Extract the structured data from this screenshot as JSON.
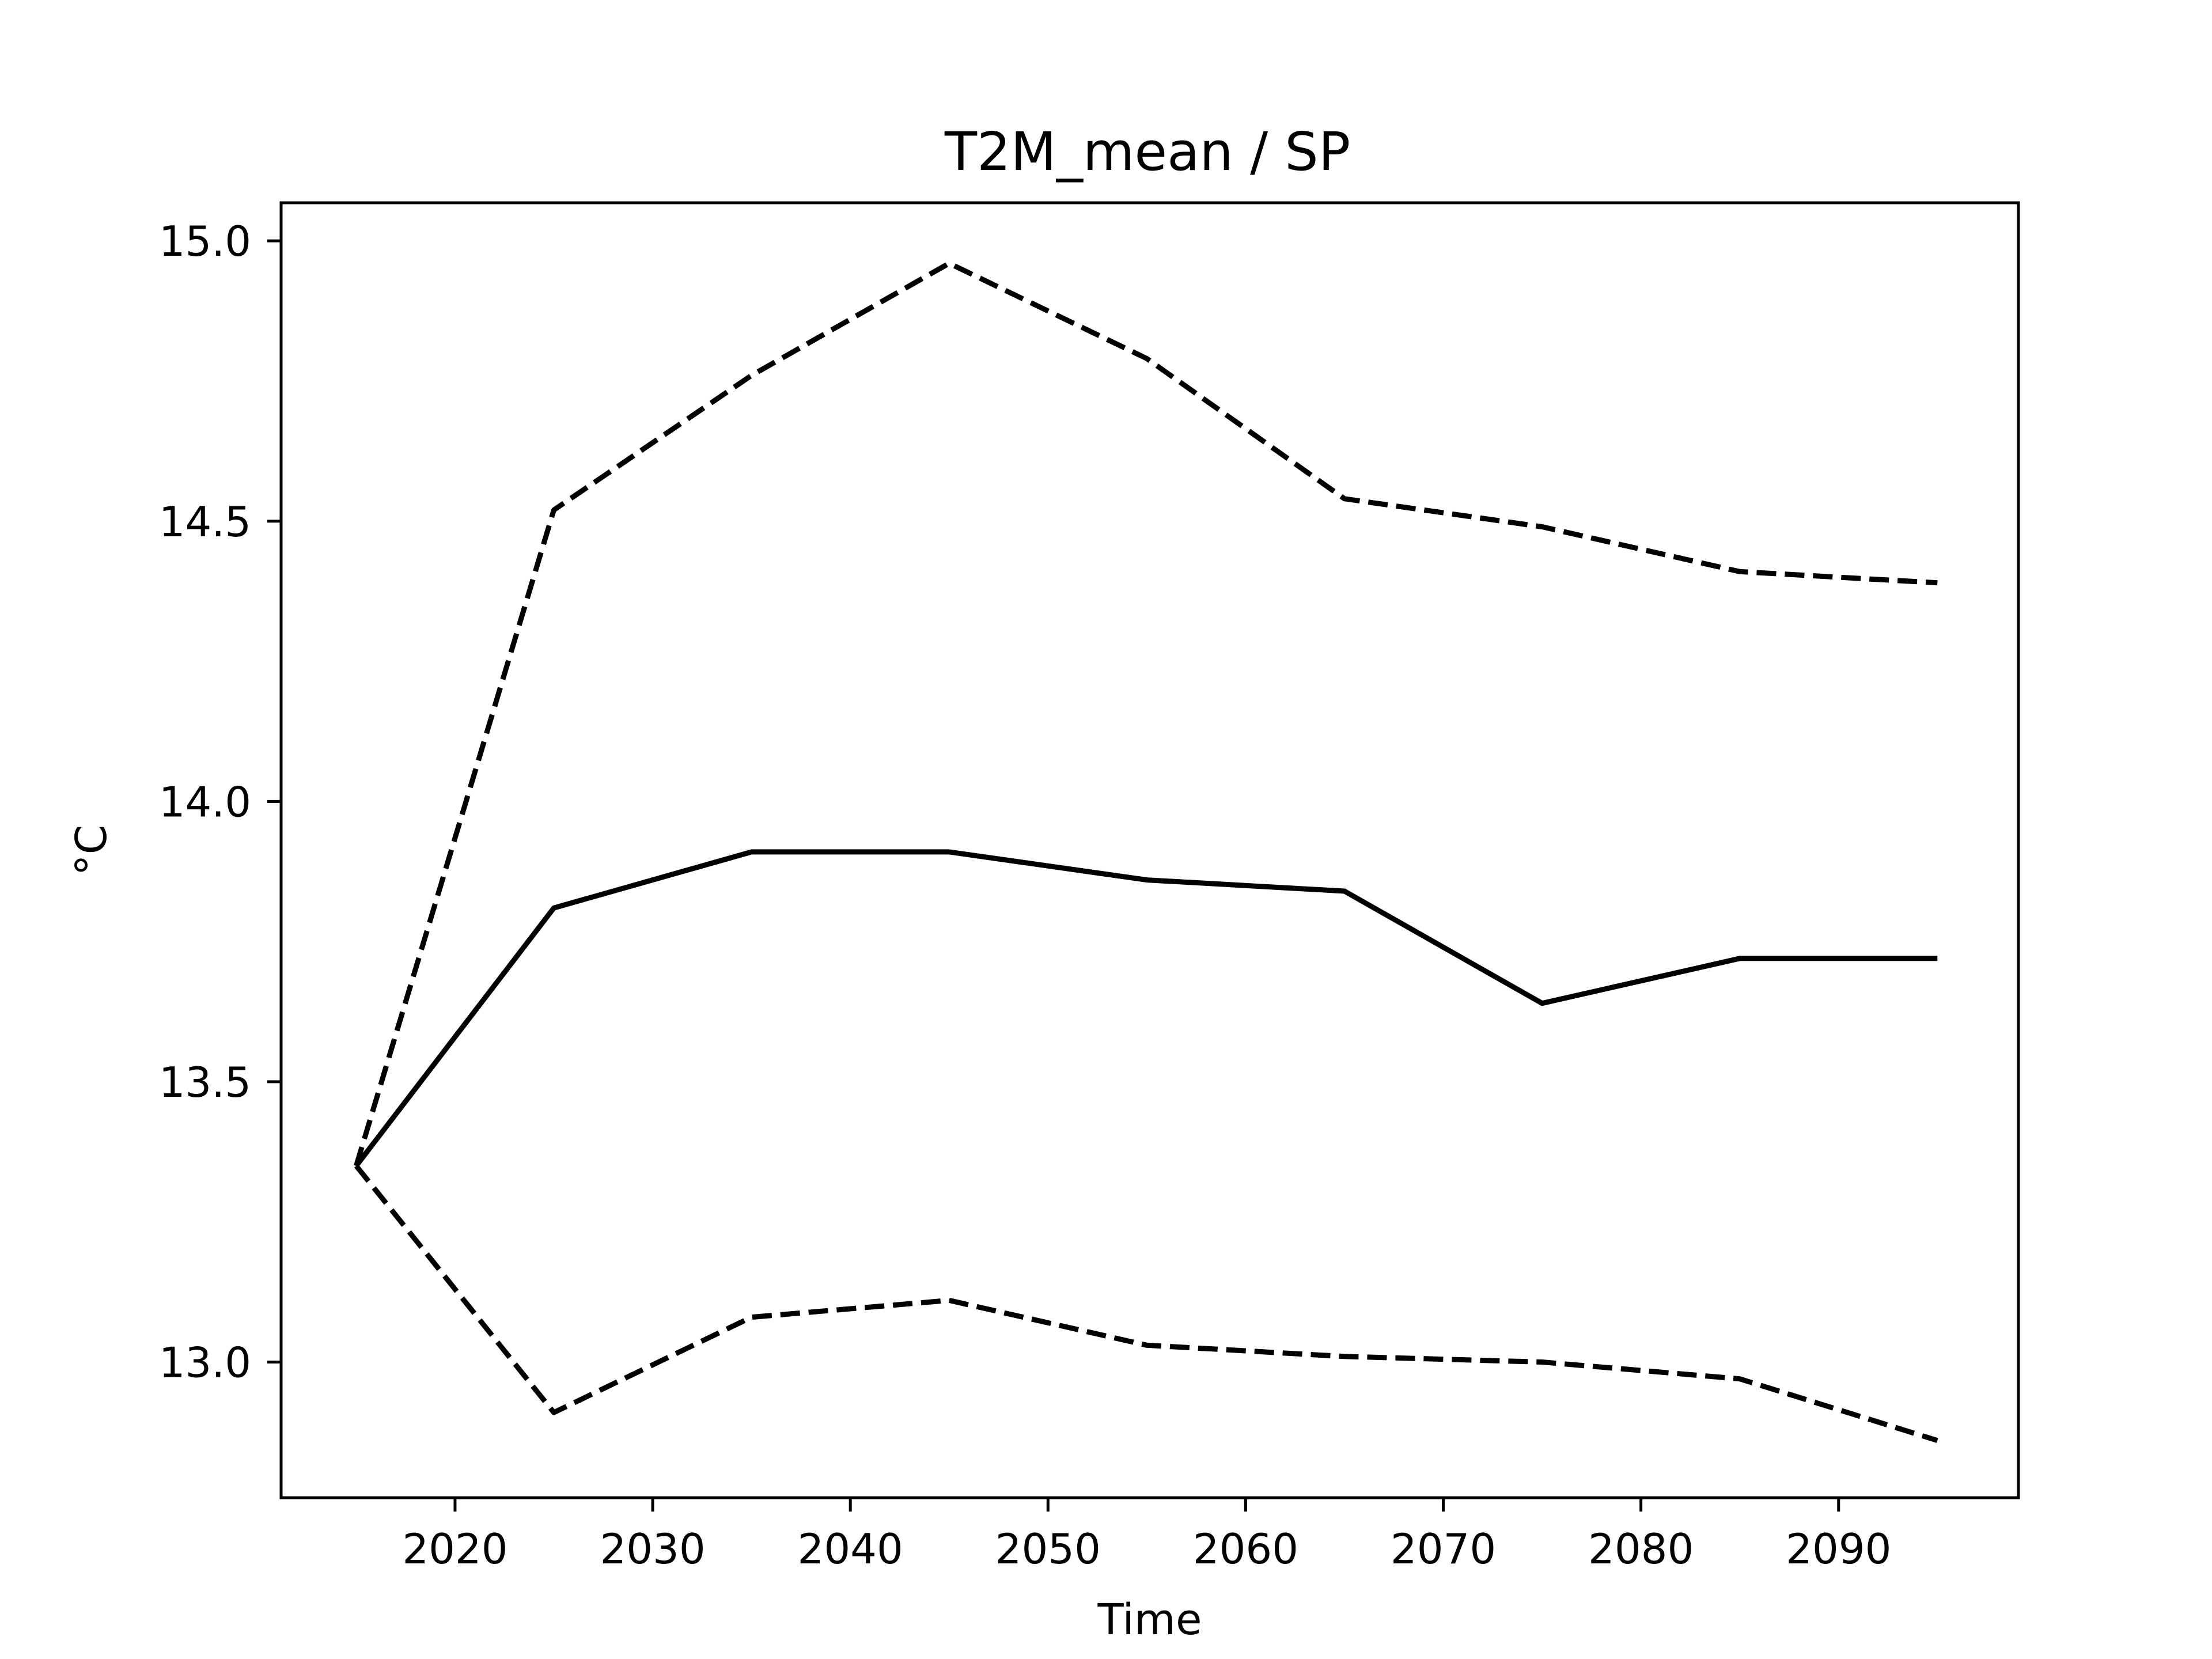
{
  "chart_data": {
    "type": "line",
    "title": "T2M_mean / SP",
    "xlabel": "Time",
    "ylabel": "°C",
    "xlim": [
      2011.2,
      2099.1
    ],
    "ylim": [
      12.758,
      15.068
    ],
    "xticks": [
      2020,
      2030,
      2040,
      2050,
      2060,
      2070,
      2080,
      2090
    ],
    "xtick_labels": [
      "2020",
      "2030",
      "2040",
      "2050",
      "2060",
      "2070",
      "2080",
      "2090"
    ],
    "yticks": [
      13.0,
      13.5,
      14.0,
      14.5,
      15.0
    ],
    "ytick_labels": [
      "13.0",
      "13.5",
      "14.0",
      "14.5",
      "15.0"
    ],
    "grid": false,
    "x": [
      2015,
      2025,
      2035,
      2045,
      2055,
      2065,
      2075,
      2085,
      2095
    ],
    "series": [
      {
        "style": "solid",
        "color": "#000000",
        "values": [
          13.35,
          13.81,
          13.91,
          13.91,
          13.86,
          13.84,
          13.64,
          13.72,
          13.72
        ]
      },
      {
        "style": "dashed",
        "color": "#000000",
        "values": [
          13.35,
          14.52,
          14.76,
          14.96,
          14.79,
          14.54,
          14.49,
          14.41,
          14.39
        ]
      },
      {
        "style": "dashed",
        "color": "#000000",
        "values": [
          13.35,
          12.91,
          13.08,
          13.11,
          13.03,
          13.01,
          13.0,
          12.97,
          12.86
        ]
      }
    ]
  }
}
